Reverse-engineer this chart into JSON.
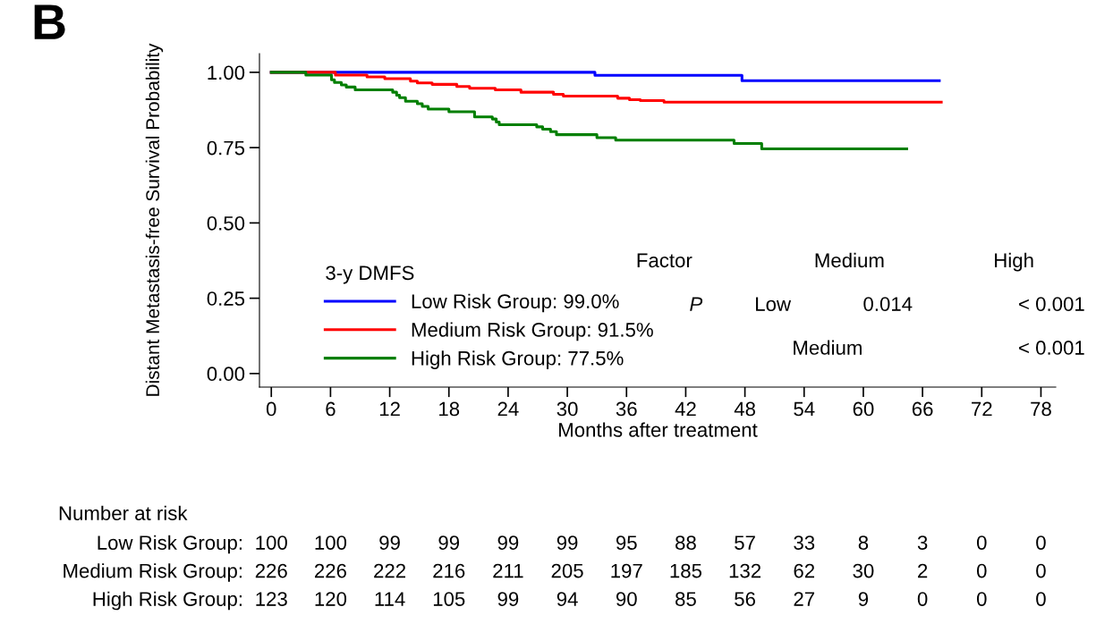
{
  "chart_data": {
    "type": "step",
    "xlabel": "Months after treatment",
    "ylabel": "Distant Metastasis-free Survival Probability",
    "legend_title": "3-y DMFS",
    "xlim": [
      -1.2,
      79.5
    ],
    "ylim": [
      -0.045,
      1.062
    ],
    "xticks": [
      0,
      6,
      12,
      18,
      24,
      30,
      36,
      42,
      48,
      54,
      60,
      66,
      72,
      78
    ],
    "yticks": [
      {
        "value": 0,
        "label": "0.00"
      },
      {
        "value": 0.25,
        "label": "0.25"
      },
      {
        "value": 0.5,
        "label": "0.50"
      },
      {
        "value": 0.75,
        "label": "0.75"
      },
      {
        "value": 1,
        "label": "1.00"
      }
    ],
    "grid": false,
    "legend": "bottom left",
    "series": [
      {
        "name": "Low Risk Group: 99.0%",
        "color": "#0000ff",
        "x": [
          0,
          32.8,
          47.7,
          67.7
        ],
        "values": [
          1.0,
          0.99,
          0.972,
          0.972
        ]
      },
      {
        "name": "Medium Risk Group: 91.5%",
        "color": "#ff0000",
        "x": [
          0,
          6.5,
          9.7,
          11.5,
          14.1,
          14.8,
          16.3,
          18.8,
          20.1,
          22.7,
          25.3,
          28.6,
          29.6,
          35.1,
          36.3,
          37.4,
          39.8,
          67.9
        ],
        "values": [
          1.0,
          0.991,
          0.985,
          0.979,
          0.971,
          0.965,
          0.96,
          0.953,
          0.947,
          0.942,
          0.934,
          0.927,
          0.921,
          0.914,
          0.909,
          0.906,
          0.901,
          0.901
        ]
      },
      {
        "name": "High Risk Group: 77.5%",
        "color": "#007f00",
        "x": [
          0,
          3.5,
          6.1,
          6.4,
          7.1,
          7.6,
          8.5,
          12.3,
          12.7,
          13.0,
          13.6,
          14.8,
          15.3,
          15.9,
          18.0,
          20.6,
          22.4,
          22.8,
          23.1,
          26.9,
          27.5,
          28.3,
          28.9,
          33.0,
          34.9,
          46.9,
          49.7,
          64.4
        ],
        "values": [
          1.0,
          0.991,
          0.975,
          0.966,
          0.958,
          0.951,
          0.942,
          0.934,
          0.924,
          0.916,
          0.904,
          0.896,
          0.887,
          0.878,
          0.869,
          0.852,
          0.845,
          0.835,
          0.826,
          0.819,
          0.811,
          0.803,
          0.793,
          0.783,
          0.775,
          0.764,
          0.746,
          0.746
        ]
      }
    ],
    "annotations": [
      "B",
      "Factor",
      "Medium",
      "High",
      "P",
      "Low",
      "0.014",
      "< 0.001",
      "Medium",
      "< 0.001",
      "Number at risk",
      "Low Risk Group:",
      "100",
      "100",
      "99",
      "99",
      "99",
      "99",
      "95",
      "88",
      "57",
      "33",
      "8",
      "3",
      "0",
      "0",
      "Medium Risk Group:",
      "226",
      "226",
      "222",
      "216",
      "211",
      "205",
      "197",
      "185",
      "132",
      "62",
      "30",
      "2",
      "0",
      "0",
      "High Risk Group:",
      "123",
      "120",
      "114",
      "105",
      "99",
      "94",
      "90",
      "85",
      "56",
      "27",
      "9",
      "0",
      "0",
      "0"
    ]
  }
}
